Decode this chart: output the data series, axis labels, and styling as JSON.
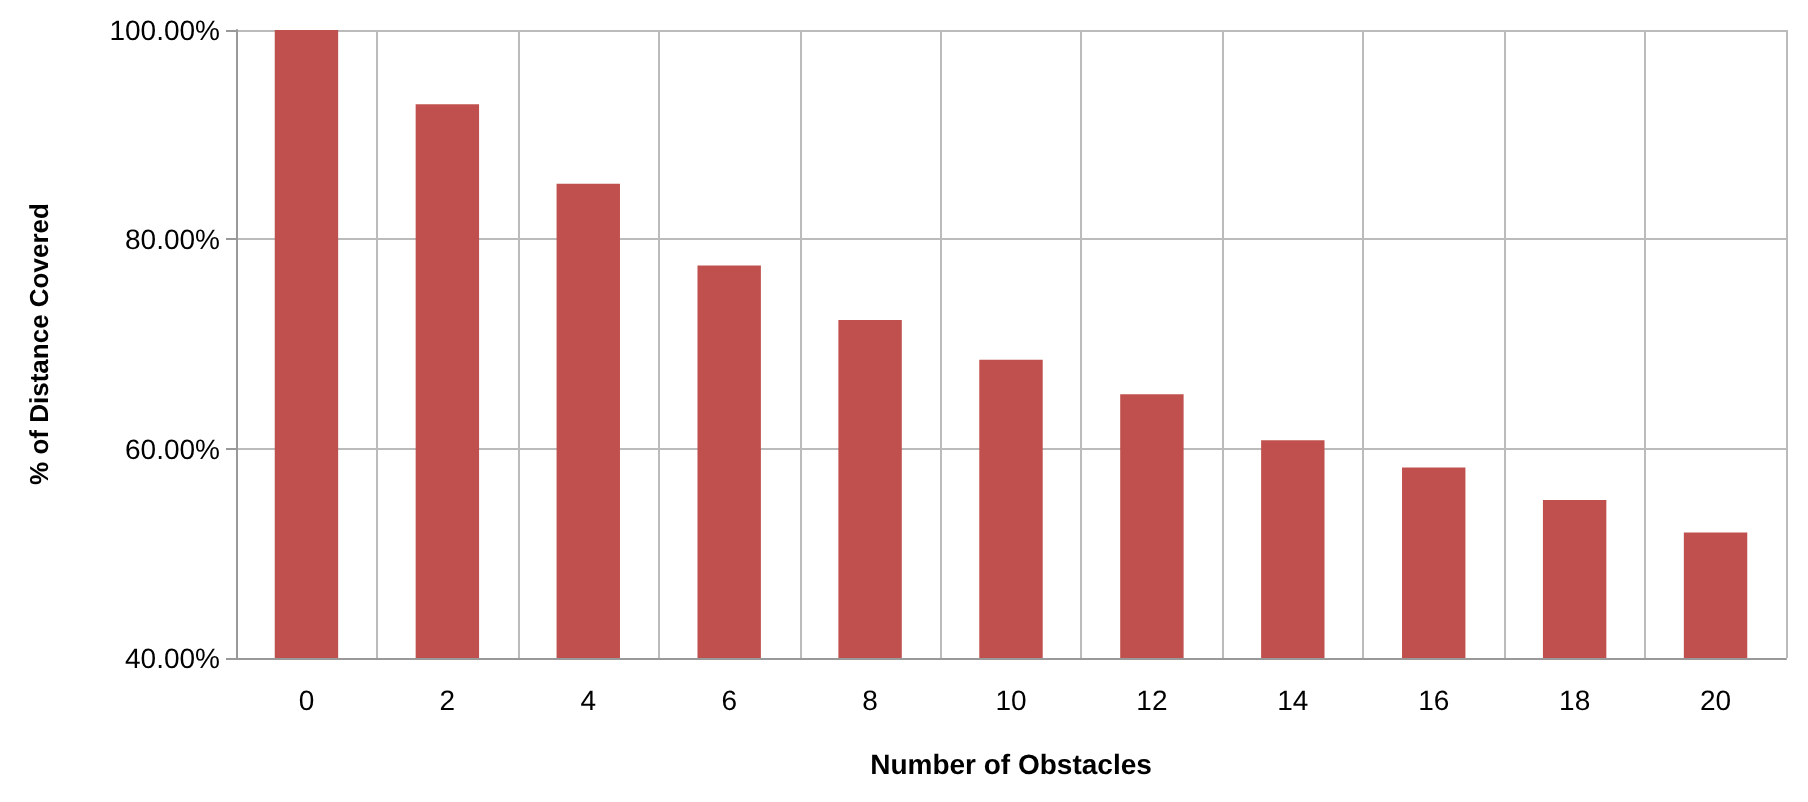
{
  "chart_data": {
    "type": "bar",
    "xlabel": "Number of Obstacles",
    "ylabel": "% of Distance Covered",
    "categories": [
      "0",
      "2",
      "4",
      "6",
      "8",
      "10",
      "12",
      "14",
      "16",
      "18",
      "20"
    ],
    "values": [
      100,
      92.9,
      85.3,
      77.5,
      72.3,
      68.5,
      65.2,
      60.8,
      58.2,
      55.1,
      52.0
    ],
    "color": "#c0504d",
    "ylim": [
      40,
      100
    ],
    "yticks": [
      {
        "value": 40,
        "label": "40.00%"
      },
      {
        "value": 60,
        "label": "60.00%"
      },
      {
        "value": 80,
        "label": "80.00%"
      },
      {
        "value": 100,
        "label": "100.00%"
      }
    ],
    "grid": true
  }
}
